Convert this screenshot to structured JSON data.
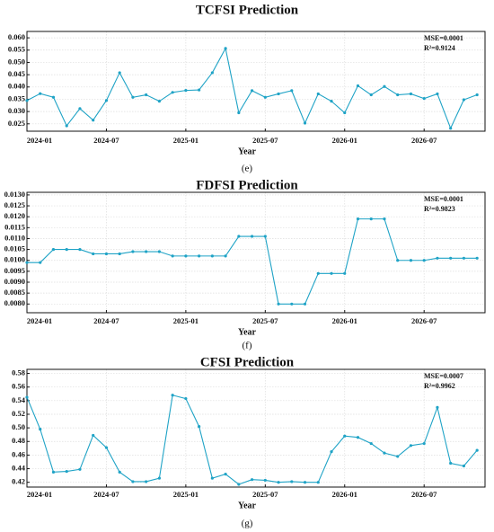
{
  "chart_data": [
    {
      "type": "line",
      "title": "TCFSI Prediction",
      "x_label": "Year",
      "caption": "(e)",
      "annotations": [
        "MSE=0.0001",
        "R²=0.9124"
      ],
      "color": "#1fa3c6",
      "grid": true,
      "categories": [
        "2024-01",
        "2024-02",
        "2024-03",
        "2024-04",
        "2024-05",
        "2024-06",
        "2024-07",
        "2024-08",
        "2024-09",
        "2024-10",
        "2024-11",
        "2024-12",
        "2025-01",
        "2025-02",
        "2025-03",
        "2025-04",
        "2025-05",
        "2025-06",
        "2025-07",
        "2025-08",
        "2025-09",
        "2025-10",
        "2025-11",
        "2025-12",
        "2026-01",
        "2026-02",
        "2026-03",
        "2026-04",
        "2026-05",
        "2026-06",
        "2026-07",
        "2026-08",
        "2026-09",
        "2026-10",
        "2026-11"
      ],
      "xticks": [
        "2024-01",
        "2024-07",
        "2025-01",
        "2025-07",
        "2026-01",
        "2026-07"
      ],
      "values": [
        0.0345,
        0.0373,
        0.0358,
        0.0242,
        0.0312,
        0.0265,
        0.0345,
        0.0458,
        0.0358,
        0.0368,
        0.0342,
        0.0378,
        0.0386,
        0.0388,
        0.0458,
        0.0557,
        0.0295,
        0.0385,
        0.0358,
        0.0372,
        0.0385,
        0.0253,
        0.0372,
        0.0342,
        0.0295,
        0.0405,
        0.0368,
        0.0402,
        0.0368,
        0.0372,
        0.0353,
        0.0372,
        0.0232,
        0.0348,
        0.0368
      ],
      "ylim": [
        0.022,
        0.0626
      ],
      "yticks": [
        0.025,
        {
          "value": 0.03,
          "label": "0.030"
        },
        0.035,
        {
          "value": 0.04,
          "label": "0.040"
        },
        0.045,
        {
          "value": 0.05,
          "label": "0.050"
        },
        0.055,
        {
          "value": 0.06,
          "label": "0.060"
        }
      ]
    },
    {
      "type": "line",
      "title": "FDFSI Prediction",
      "x_label": "Year",
      "caption": "(f)",
      "annotations": [
        "MSE=0.0001",
        "R²=0.9823"
      ],
      "color": "#1fa3c6",
      "grid": true,
      "categories": [
        "2024-01",
        "2024-02",
        "2024-03",
        "2024-04",
        "2024-05",
        "2024-06",
        "2024-07",
        "2024-08",
        "2024-09",
        "2024-10",
        "2024-11",
        "2024-12",
        "2025-01",
        "2025-02",
        "2025-03",
        "2025-04",
        "2025-05",
        "2025-06",
        "2025-07",
        "2025-08",
        "2025-09",
        "2025-10",
        "2025-11",
        "2025-12",
        "2026-01",
        "2026-02",
        "2026-03",
        "2026-04",
        "2026-05",
        "2026-06",
        "2026-07",
        "2026-08",
        "2026-09",
        "2026-10",
        "2026-11"
      ],
      "xticks": [
        "2024-01",
        "2024-07",
        "2025-01",
        "2025-07",
        "2026-01",
        "2026-07"
      ],
      "values": [
        0.0099,
        0.0099,
        0.0105,
        0.0105,
        0.0105,
        0.0103,
        0.0103,
        0.0103,
        0.0104,
        0.0104,
        0.0104,
        0.0102,
        0.0102,
        0.0102,
        0.0102,
        0.0102,
        0.0111,
        0.0111,
        0.0111,
        0.008,
        0.008,
        0.008,
        0.0094,
        0.0094,
        0.0094,
        0.0119,
        0.0119,
        0.0119,
        0.01,
        0.01,
        0.01,
        0.0101,
        0.0101,
        0.0101,
        0.0101
      ],
      "ylim": [
        0.0076,
        0.01312
      ],
      "yticks": [
        {
          "value": 0.008,
          "label": "0.0080"
        },
        0.0085,
        {
          "value": 0.009,
          "label": "0.0090"
        },
        0.0095,
        {
          "value": 0.01,
          "label": "0.0100"
        },
        0.0105,
        {
          "value": 0.011,
          "label": "0.0110"
        },
        0.0115,
        {
          "value": 0.012,
          "label": "0.0120"
        },
        0.0125,
        {
          "value": 0.013,
          "label": "0.0130"
        }
      ]
    },
    {
      "type": "line",
      "title": "CFSI Prediction",
      "x_label": "Year",
      "caption": "(g)",
      "annotations": [
        "MSE=0.0007",
        "R²=0.9962"
      ],
      "color": "#1fa3c6",
      "grid": true,
      "categories": [
        "2024-01",
        "2024-02",
        "2024-03",
        "2024-04",
        "2024-05",
        "2024-06",
        "2024-07",
        "2024-08",
        "2024-09",
        "2024-10",
        "2024-11",
        "2024-12",
        "2025-01",
        "2025-02",
        "2025-03",
        "2025-04",
        "2025-05",
        "2025-06",
        "2025-07",
        "2025-08",
        "2025-09",
        "2025-10",
        "2025-11",
        "2025-12",
        "2026-01",
        "2026-02",
        "2026-03",
        "2026-04",
        "2026-05",
        "2026-06",
        "2026-07",
        "2026-08",
        "2026-09",
        "2026-10",
        "2026-11"
      ],
      "xticks": [
        "2024-01",
        "2024-07",
        "2025-01",
        "2025-07",
        "2026-01",
        "2026-07"
      ],
      "values": [
        0.545,
        0.498,
        0.435,
        0.436,
        0.439,
        0.489,
        0.471,
        0.435,
        0.421,
        0.421,
        0.426,
        0.548,
        0.543,
        0.502,
        0.426,
        0.432,
        0.417,
        0.424,
        0.423,
        0.42,
        0.421,
        0.42,
        0.42,
        0.465,
        0.488,
        0.486,
        0.477,
        0.463,
        0.458,
        0.474,
        0.477,
        0.53,
        0.448,
        0.444,
        0.467
      ],
      "ylim": [
        0.413,
        0.586
      ],
      "yticks": [
        0.42,
        0.44,
        0.46,
        0.48,
        {
          "value": 0.5,
          "label": "0.50"
        },
        0.52,
        0.54,
        0.56,
        0.58
      ]
    }
  ]
}
